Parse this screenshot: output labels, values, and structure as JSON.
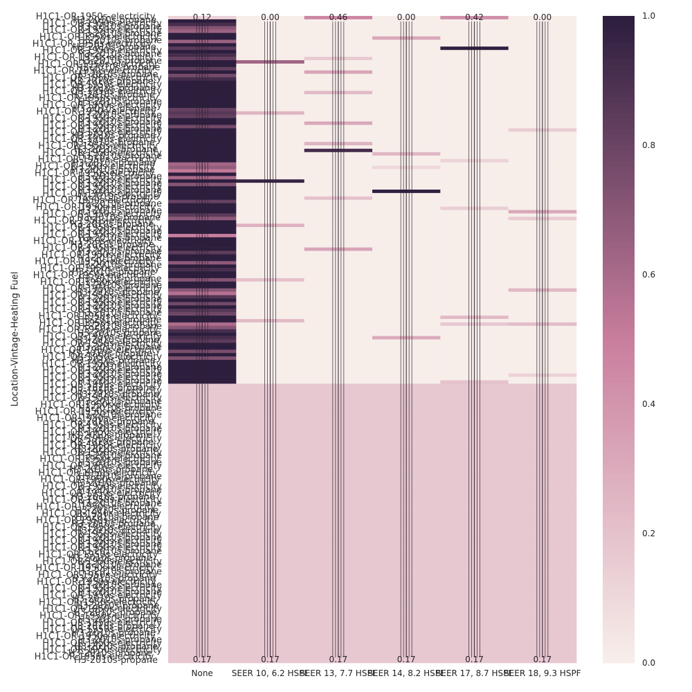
{
  "chart_data": {
    "type": "heatmap",
    "title": "",
    "ylabel": "Location-Vintage-Heating Fuel",
    "xlabel": "",
    "columns": [
      "None",
      "SEER 10, 6.2 HSPF",
      "SEER 13, 7.7 HSPF",
      "SEER 14, 8.2 HSPF",
      "SEER 17, 8.7 HSPF",
      "SEER 18, 9.3 HSPF"
    ],
    "row_labels_visible": [
      "H1C1-OR-1950s-electricity",
      "H3-2010s-propane"
    ],
    "row_count_approx": 190,
    "annotations_visible": [
      "0.00",
      "0.46",
      "0.42",
      "0.17"
    ],
    "top_region": {
      "description_rows": "upper ~57% of rows",
      "None_range": [
        0.5,
        1.0
      ],
      "typical_other": 0.0,
      "first_row_values": [
        0.12,
        0.0,
        0.46,
        0.0,
        0.42,
        0.0
      ]
    },
    "bottom_region": {
      "description_rows": "lower ~43% of rows",
      "uniform_value": 0.17
    },
    "colorbar": {
      "min": 0.0,
      "max": 1.0,
      "ticks": [
        "0.0",
        "0.2",
        "0.4",
        "0.6",
        "0.8",
        "1.0"
      ]
    },
    "colors": {
      "low": "#f7eeea",
      "mid": "#c97e9d",
      "high": "#2d1e3e"
    }
  }
}
